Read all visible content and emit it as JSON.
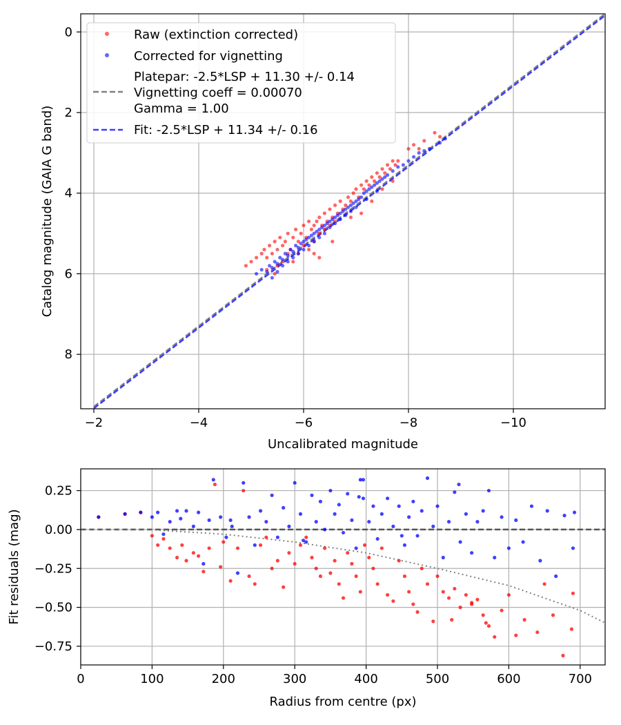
{
  "colors": {
    "raw": "#ff0000",
    "corrected": "#0000ff",
    "platepar_line": "#808080",
    "fit_line": "#3c3cff",
    "grid": "#b0b0b0"
  },
  "chart_data": [
    {
      "type": "scatter",
      "xlabel": "Uncalibrated magnitude",
      "ylabel": "Catalog magnitude (GAIA G band)",
      "xlim": [
        -1.75,
        -11.75
      ],
      "ylim": [
        9.35,
        -0.45
      ],
      "xticks": [
        -2,
        -4,
        -6,
        -8,
        -10
      ],
      "xtick_labels": [
        "−2",
        "−4",
        "−6",
        "−8",
        "−10"
      ],
      "yticks": [
        0,
        2,
        4,
        6,
        8
      ],
      "ytick_labels": [
        "0",
        "2",
        "4",
        "6",
        "8"
      ],
      "grid": true,
      "legend": {
        "placement": "upper-left",
        "entries": [
          {
            "label": "Raw (extinction corrected)",
            "kind": "marker",
            "color": "#ff0000"
          },
          {
            "label": "Corrected for vignetting",
            "kind": "marker",
            "color": "#0000ff"
          },
          {
            "label": "Platepar: -2.5*LSP + 11.30 +/- 0.14",
            "kind": "line",
            "color": "#808080",
            "extra_lines": [
              "Vignetting coeff = 0.00070",
              "Gamma = 1.00"
            ]
          },
          {
            "label": "Fit: -2.5*LSP + 11.34 +/- 0.16",
            "kind": "line",
            "color": "#3c3cff"
          }
        ]
      },
      "lines": [
        {
          "name": "Platepar",
          "slope": 1,
          "intercept": 11.3,
          "x": [
            -2.0,
            -11.75
          ],
          "style": "dashed",
          "color": "#808080"
        },
        {
          "name": "Fit",
          "slope": 1,
          "intercept": 11.34,
          "x": [
            -2.0,
            -11.75
          ],
          "style": "dashed",
          "color": "#3c3cff"
        }
      ],
      "series": [
        {
          "name": "Raw (extinction corrected)",
          "color": "#ff0000",
          "x": [
            -4.9,
            -5.0,
            -5.1,
            -5.2,
            -5.25,
            -5.3,
            -5.35,
            -5.4,
            -5.45,
            -5.5,
            -5.55,
            -5.6,
            -5.6,
            -5.65,
            -5.7,
            -5.7,
            -5.75,
            -5.8,
            -5.85,
            -5.9,
            -5.9,
            -5.95,
            -6.0,
            -6.0,
            -6.05,
            -6.1,
            -6.1,
            -6.15,
            -6.2,
            -6.2,
            -6.25,
            -6.3,
            -6.3,
            -6.35,
            -6.4,
            -6.4,
            -6.45,
            -6.5,
            -6.5,
            -6.55,
            -6.6,
            -6.6,
            -6.65,
            -6.7,
            -6.75,
            -6.8,
            -6.85,
            -6.9,
            -6.95,
            -7.0,
            -7.05,
            -7.1,
            -7.15,
            -7.2,
            -7.25,
            -7.3,
            -7.35,
            -7.4,
            -7.45,
            -7.5,
            -7.55,
            -7.6,
            -7.65,
            -7.7,
            -7.75,
            -7.8,
            -8.0,
            -8.1,
            -8.2,
            -8.3,
            -8.5,
            -8.6,
            -5.3,
            -5.45,
            -5.5,
            -5.8,
            -6.2,
            -6.3,
            -6.55,
            -6.9,
            -7.1,
            -7.3,
            -7.5,
            -7.7
          ],
          "y": [
            5.8,
            5.7,
            5.6,
            5.5,
            5.4,
            5.6,
            5.3,
            5.5,
            5.2,
            5.4,
            5.1,
            5.3,
            5.7,
            5.2,
            5.0,
            5.5,
            5.4,
            5.1,
            4.9,
            5.2,
            5.5,
            5.0,
            4.8,
            5.3,
            5.1,
            4.7,
            5.4,
            4.9,
            4.8,
            5.2,
            4.7,
            4.6,
            5.0,
            4.8,
            4.5,
            4.9,
            4.7,
            4.4,
            4.8,
            4.6,
            4.3,
            4.7,
            4.5,
            4.2,
            4.4,
            4.3,
            4.1,
            4.2,
            4.0,
            3.9,
            4.1,
            3.8,
            3.9,
            3.7,
            3.8,
            3.6,
            3.7,
            3.5,
            3.6,
            3.4,
            3.5,
            3.3,
            3.4,
            3.2,
            3.3,
            3.2,
            2.9,
            2.8,
            2.9,
            2.7,
            2.5,
            2.6,
            5.9,
            6.0,
            5.8,
            5.7,
            5.5,
            5.6,
            5.2,
            4.6,
            4.5,
            4.2,
            3.9,
            3.7
          ]
        },
        {
          "name": "Corrected for vignetting",
          "color": "#0000ff",
          "x": [
            -5.1,
            -5.2,
            -5.3,
            -5.35,
            -5.4,
            -5.45,
            -5.5,
            -5.55,
            -5.6,
            -5.65,
            -5.7,
            -5.75,
            -5.8,
            -5.85,
            -5.9,
            -5.95,
            -6.0,
            -6.05,
            -6.1,
            -6.15,
            -6.2,
            -6.25,
            -6.3,
            -6.35,
            -6.4,
            -6.45,
            -6.5,
            -6.55,
            -6.6,
            -6.65,
            -6.7,
            -6.75,
            -6.8,
            -6.85,
            -6.9,
            -6.95,
            -7.0,
            -7.05,
            -7.1,
            -7.15,
            -7.2,
            -7.25,
            -7.3,
            -7.35,
            -7.4,
            -7.45,
            -7.5,
            -7.55,
            -7.6,
            -7.7,
            -7.8,
            -7.9,
            -8.0,
            -8.1,
            -8.2,
            -8.3,
            -8.4,
            -8.6,
            -8.7,
            -5.4,
            -5.5,
            -5.6,
            -5.7,
            -5.8,
            -5.9,
            -6.0,
            -6.1,
            -6.2,
            -6.3,
            -6.4,
            -6.5,
            -6.6,
            -6.7,
            -6.8,
            -6.9,
            -7.0,
            -7.2,
            -7.4
          ],
          "y": [
            6.0,
            5.9,
            5.95,
            5.8,
            5.85,
            5.7,
            5.75,
            5.6,
            5.65,
            5.5,
            5.55,
            5.4,
            5.45,
            5.3,
            5.35,
            5.25,
            5.2,
            5.15,
            5.1,
            5.05,
            5.0,
            4.95,
            4.9,
            4.85,
            4.8,
            4.75,
            4.7,
            4.65,
            4.6,
            4.55,
            4.5,
            4.45,
            4.4,
            4.35,
            4.3,
            4.25,
            4.2,
            4.15,
            4.1,
            4.0,
            3.95,
            3.9,
            3.85,
            3.8,
            3.75,
            3.7,
            3.65,
            3.6,
            3.55,
            3.45,
            3.35,
            3.3,
            3.2,
            3.1,
            3.0,
            2.95,
            2.9,
            2.75,
            2.65,
            6.1,
            5.95,
            5.8,
            5.7,
            5.6,
            5.5,
            5.4,
            5.3,
            5.2,
            5.1,
            5.0,
            4.85,
            4.75,
            4.65,
            4.55,
            4.45,
            4.35,
            4.15,
            3.95
          ]
        }
      ]
    },
    {
      "type": "scatter",
      "xlabel": "Radius from centre (px)",
      "ylabel": "Fit residuals (mag)",
      "xlim": [
        0,
        735
      ],
      "ylim": [
        -0.87,
        0.39
      ],
      "xticks": [
        0,
        100,
        200,
        300,
        400,
        500,
        600,
        700
      ],
      "xtick_labels": [
        "0",
        "100",
        "200",
        "300",
        "400",
        "500",
        "600",
        "700"
      ],
      "yticks": [
        0.25,
        0.0,
        -0.25,
        -0.5,
        -0.75
      ],
      "ytick_labels": [
        "0.25",
        "0.00",
        "−0.25",
        "−0.50",
        "−0.75"
      ],
      "grid": true,
      "lines": [
        {
          "name": "zero",
          "style": "dashed",
          "color": "#555555",
          "x": [
            0,
            735
          ],
          "y": [
            0,
            0
          ]
        },
        {
          "name": "vignetting model",
          "style": "dotted",
          "color": "#808080",
          "x": [
            0,
            100,
            200,
            300,
            400,
            500,
            600,
            700,
            735
          ],
          "y": [
            0.0,
            -0.002,
            -0.03,
            -0.08,
            -0.15,
            -0.25,
            -0.36,
            -0.52,
            -0.6
          ]
        }
      ],
      "series": [
        {
          "name": "Raw (extinction corrected)",
          "color": "#ff0000",
          "x": [
            25,
            62,
            84,
            100,
            108,
            116,
            125,
            135,
            142,
            148,
            158,
            165,
            172,
            180,
            188,
            196,
            200,
            210,
            220,
            228,
            236,
            244,
            252,
            260,
            268,
            276,
            284,
            292,
            300,
            308,
            316,
            324,
            330,
            336,
            342,
            350,
            356,
            362,
            368,
            374,
            380,
            386,
            392,
            398,
            404,
            410,
            416,
            422,
            430,
            438,
            446,
            454,
            460,
            466,
            472,
            478,
            486,
            494,
            500,
            508,
            516,
            524,
            532,
            540,
            548,
            556,
            564,
            572,
            580,
            590,
            600,
            610,
            622,
            640,
            650,
            662,
            676,
            688,
            690,
            568,
            548,
            520
          ],
          "y": [
            0.08,
            0.1,
            0.11,
            -0.04,
            -0.1,
            -0.06,
            -0.12,
            -0.18,
            -0.1,
            -0.2,
            -0.15,
            -0.17,
            -0.27,
            -0.12,
            0.29,
            -0.24,
            -0.08,
            -0.33,
            -0.12,
            0.25,
            -0.3,
            -0.35,
            -0.1,
            -0.05,
            -0.25,
            -0.2,
            -0.37,
            -0.15,
            -0.22,
            -0.1,
            -0.05,
            -0.18,
            -0.25,
            -0.3,
            -0.12,
            -0.28,
            -0.2,
            -0.35,
            -0.44,
            -0.15,
            -0.22,
            -0.3,
            -0.4,
            -0.1,
            -0.18,
            -0.25,
            -0.35,
            -0.12,
            -0.42,
            -0.46,
            -0.2,
            -0.3,
            -0.4,
            -0.48,
            -0.53,
            -0.25,
            -0.35,
            -0.59,
            -0.3,
            -0.4,
            -0.44,
            -0.38,
            -0.5,
            -0.42,
            -0.48,
            -0.45,
            -0.55,
            -0.62,
            -0.69,
            -0.52,
            -0.42,
            -0.68,
            -0.58,
            -0.66,
            -0.35,
            -0.55,
            -0.81,
            -0.64,
            -0.41,
            -0.6,
            -0.47,
            -0.58
          ]
        },
        {
          "name": "Corrected for vignetting",
          "color": "#0000ff",
          "x": [
            25,
            62,
            84,
            100,
            108,
            116,
            125,
            135,
            140,
            148,
            158,
            165,
            172,
            180,
            186,
            196,
            204,
            212,
            220,
            228,
            236,
            244,
            252,
            260,
            268,
            276,
            284,
            292,
            300,
            308,
            316,
            324,
            330,
            336,
            342,
            350,
            356,
            362,
            368,
            374,
            380,
            386,
            392,
            396,
            404,
            410,
            416,
            422,
            430,
            438,
            446,
            454,
            460,
            466,
            472,
            478,
            486,
            494,
            500,
            508,
            516,
            524,
            532,
            540,
            548,
            556,
            564,
            572,
            580,
            590,
            600,
            610,
            620,
            632,
            644,
            654,
            666,
            678,
            690,
            692,
            396,
            312,
            210,
            390,
            450,
            530
          ],
          "y": [
            0.08,
            0.1,
            0.11,
            0.08,
            0.11,
            -0.03,
            0.05,
            0.12,
            0.07,
            0.12,
            0.02,
            0.11,
            -0.22,
            0.06,
            0.32,
            0.08,
            -0.05,
            0.02,
            -0.28,
            0.3,
            0.08,
            -0.1,
            0.12,
            0.05,
            0.22,
            -0.05,
            0.14,
            0.02,
            0.3,
            0.1,
            -0.08,
            0.22,
            0.05,
            0.18,
            0.0,
            0.25,
            0.1,
            0.16,
            -0.02,
            0.23,
            0.06,
            -0.12,
            0.32,
            0.2,
            0.05,
            0.15,
            -0.06,
            0.1,
            0.2,
            0.02,
            0.15,
            -0.1,
            0.08,
            0.18,
            -0.04,
            0.12,
            0.33,
            0.02,
            0.15,
            -0.18,
            0.05,
            0.24,
            -0.08,
            0.1,
            -0.15,
            0.05,
            0.12,
            0.25,
            -0.18,
            0.08,
            -0.12,
            0.06,
            -0.08,
            0.15,
            -0.2,
            0.12,
            -0.3,
            0.09,
            -0.12,
            0.11,
            0.32,
            -0.07,
            0.06,
            0.21,
            -0.04,
            0.29
          ]
        }
      ]
    }
  ]
}
